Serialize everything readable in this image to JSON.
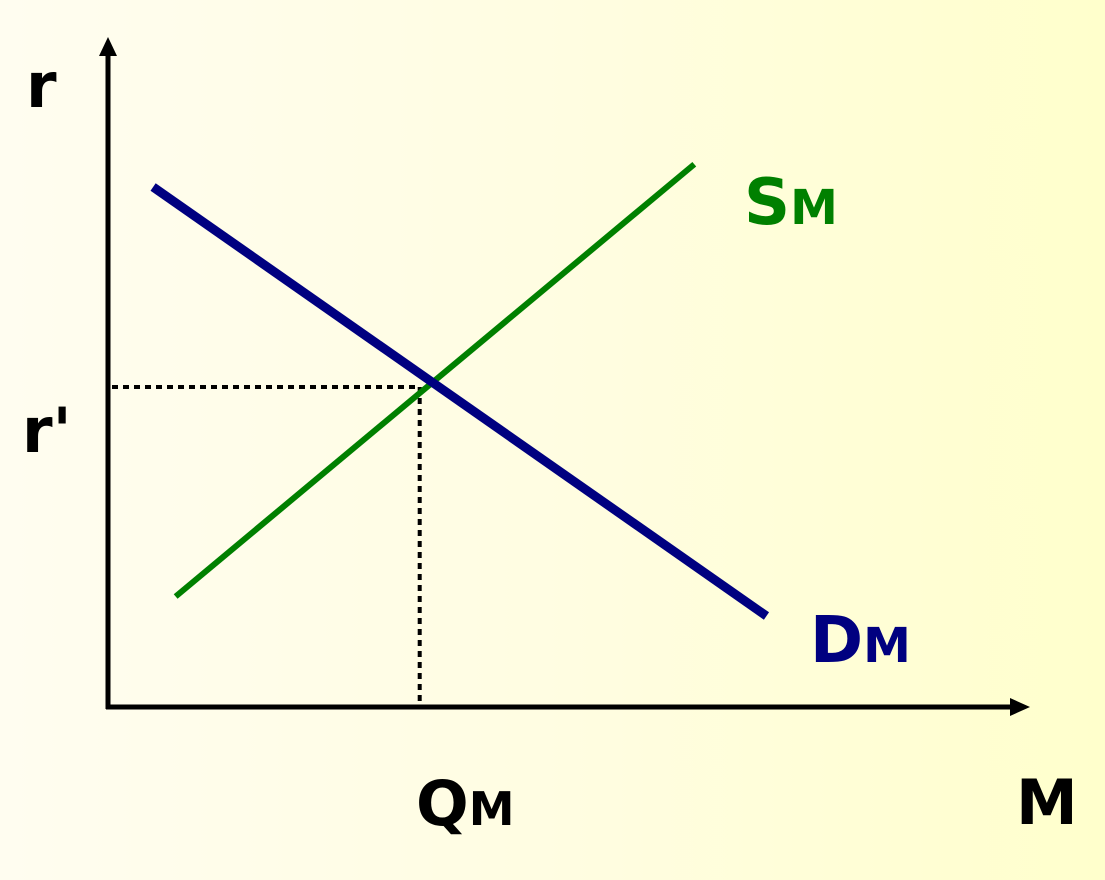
{
  "chart_data": {
    "type": "line",
    "title": "",
    "xlabel": "M",
    "ylabel": "r",
    "grid": false,
    "legend": "none",
    "xlim": [
      0,
      100
    ],
    "ylim": [
      0,
      100
    ],
    "series": [
      {
        "name": "DM",
        "label_main": "D",
        "label_sub": "M",
        "color": "#000080",
        "points": [
          [
            5,
            80
          ],
          [
            73,
            14
          ]
        ]
      },
      {
        "name": "SM",
        "label_main": "S",
        "label_sub": "M",
        "color": "#008000",
        "points": [
          [
            7.5,
            17
          ],
          [
            65,
            83.5
          ]
        ]
      }
    ],
    "equilibrium": {
      "x": 35,
      "y": 50,
      "x_label_main": "Q",
      "x_label_sub": "M",
      "y_label": "r'"
    },
    "axis_color": "#000000"
  }
}
